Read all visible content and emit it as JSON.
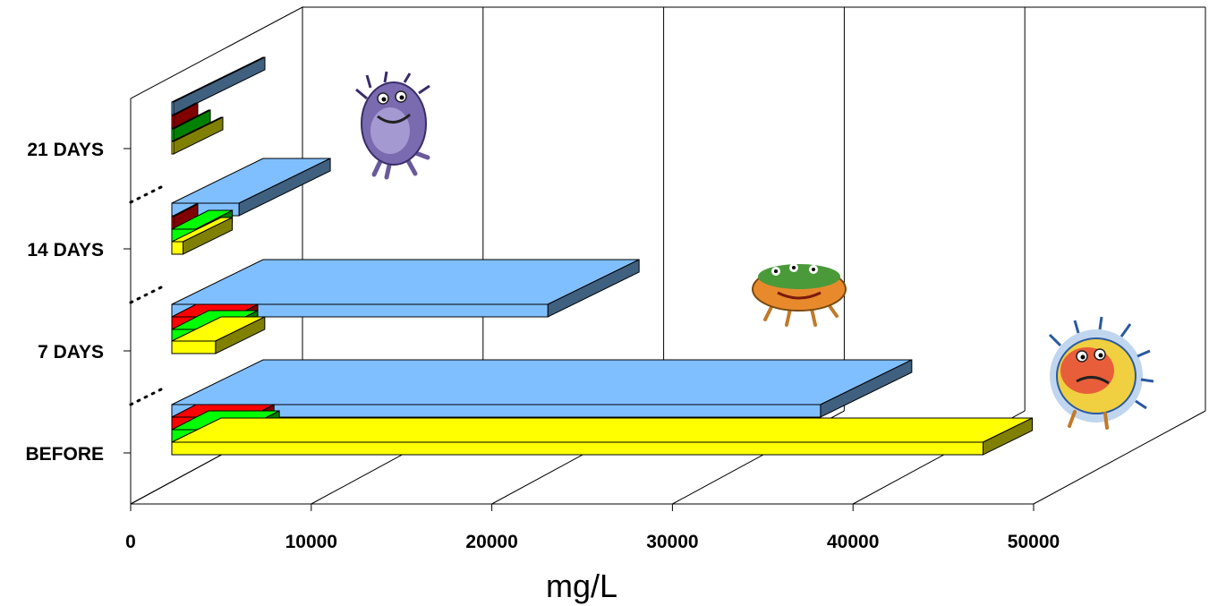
{
  "chart_data": {
    "type": "bar",
    "orientation": "horizontal",
    "three_d": true,
    "categories": [
      "BEFORE",
      "7 DAYS",
      "14 DAYS",
      "21 DAYS"
    ],
    "series": [
      {
        "values": [
          47200,
          4700,
          2900,
          1100
        ],
        "color": "#ffff00"
      },
      {
        "values": [
          6200,
          5000,
          3600,
          800
        ],
        "color": "#00ff00"
      },
      {
        "values": [
          6600,
          5700,
          1000,
          600
        ],
        "color": "#ff0000"
      },
      {
        "values": [
          38200,
          23100,
          6000,
          300
        ],
        "color": "#80bfff"
      }
    ],
    "xticks": [
      "0",
      "10000",
      "20000",
      "30000",
      "40000",
      "50000"
    ],
    "xlim": [
      0,
      50000
    ],
    "xlabel": "mg/L",
    "ylabel": "",
    "title": "",
    "grid": true,
    "legend": false
  },
  "decorations": {
    "icons": [
      "purple-germ-icon",
      "orange-green-germ-icon",
      "red-yellow-germ-icon"
    ]
  }
}
